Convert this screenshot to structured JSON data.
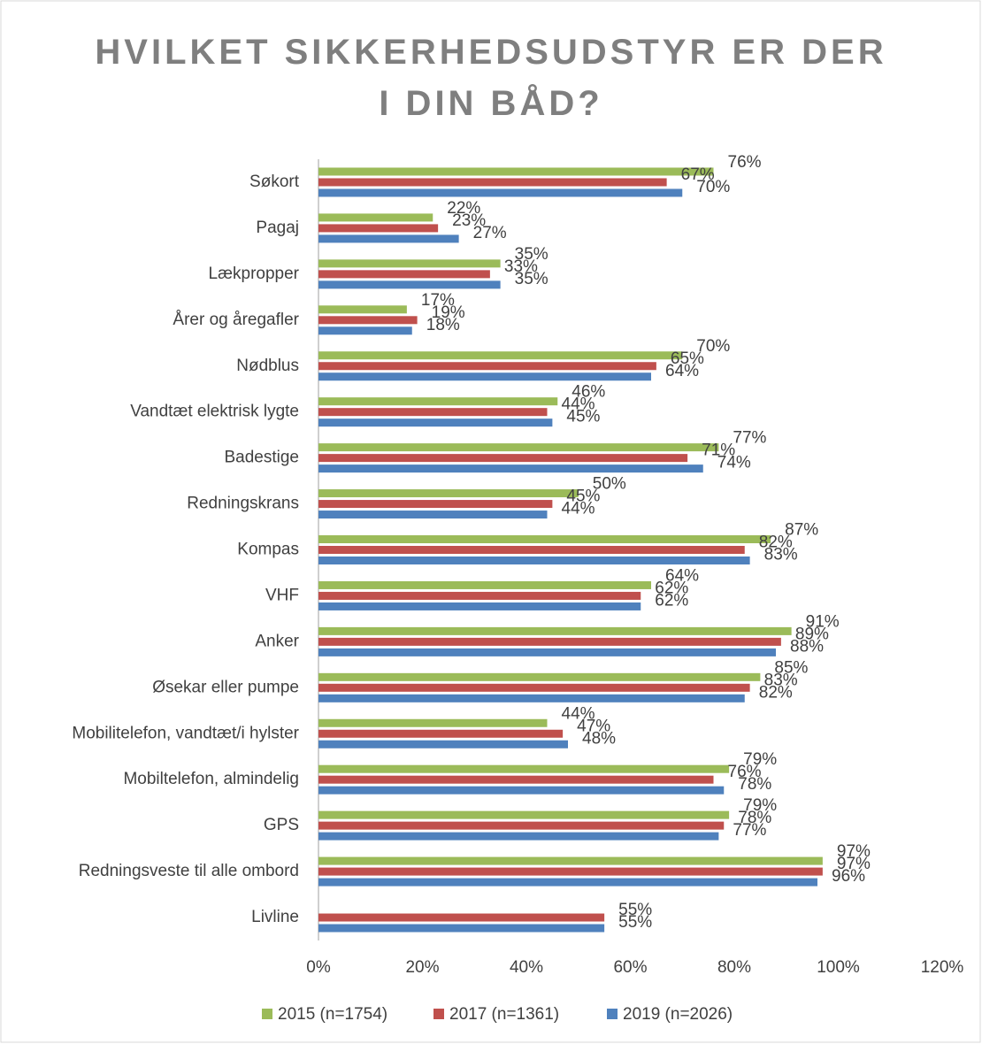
{
  "chart_data": {
    "type": "hbar",
    "title": "HVILKET SIKKERHEDSUDSTYR ER DER I DIN BÅD?",
    "categories": [
      "Søkort",
      "Pagaj",
      "Lækpropper",
      "Årer og åregafler",
      "Nødblus",
      "Vandtæt elektrisk lygte",
      "Badestige",
      "Redningskrans",
      "Kompas",
      "VHF",
      "Anker",
      "Øsekar eller pumpe",
      "Mobilitelefon, vandtæt/i hylster",
      "Mobiltelefon, almindelig",
      "GPS",
      "Redningsveste til alle ombord",
      "Livline"
    ],
    "series": [
      {
        "name": "2015 (n=1754)",
        "color": "#9bbb59",
        "values": [
          76,
          22,
          35,
          17,
          70,
          46,
          77,
          50,
          87,
          64,
          91,
          85,
          44,
          79,
          79,
          97,
          null
        ],
        "value_labels": [
          "76%",
          "22%",
          "35%",
          "17%",
          "70%",
          "46%",
          "77%",
          "50%",
          "87%",
          "64%",
          "91%",
          "85%",
          "44%",
          "79%",
          "79%",
          "97%",
          null
        ]
      },
      {
        "name": "2017 (n=1361)",
        "color": "#c0504d",
        "values": [
          67,
          23,
          33,
          19,
          65,
          44,
          71,
          45,
          82,
          62,
          89,
          83,
          47,
          76,
          78,
          97,
          55
        ],
        "value_labels": [
          "67%",
          "23%",
          "33%",
          "19%",
          "65%",
          "44%",
          "71%",
          "45%",
          "82%",
          "62%",
          "89%",
          "83%",
          "47%",
          "76%",
          "78%",
          "97%",
          "55%"
        ]
      },
      {
        "name": "2019 (n=2026)",
        "color": "#4f81bd",
        "values": [
          70,
          27,
          35,
          18,
          64,
          45,
          74,
          44,
          83,
          62,
          88,
          82,
          48,
          78,
          77,
          96,
          55
        ],
        "value_labels": [
          "70%",
          "27%",
          "35%",
          "18%",
          "64%",
          "45%",
          "74%",
          "44%",
          "83%",
          "62%",
          "88%",
          "82%",
          "48%",
          "78%",
          "77%",
          "96%",
          "55%"
        ]
      }
    ],
    "xlim": [
      0,
      120
    ],
    "xticks": [
      {
        "value": 0,
        "label": "0%"
      },
      {
        "value": 20,
        "label": "20%"
      },
      {
        "value": 40,
        "label": "40%"
      },
      {
        "value": 60,
        "label": "60%"
      },
      {
        "value": 80,
        "label": "80%"
      },
      {
        "value": 100,
        "label": "100%"
      },
      {
        "value": 120,
        "label": "120%"
      }
    ],
    "legend": "bottom"
  }
}
